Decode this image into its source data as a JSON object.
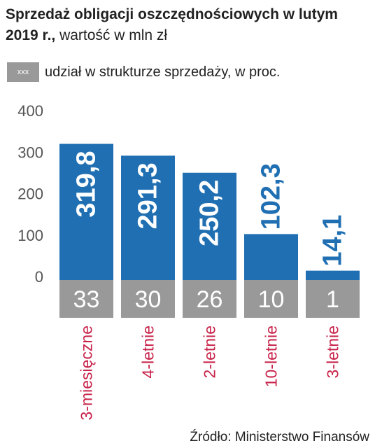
{
  "title": {
    "bold": "Sprzedaż obligacji oszczędnościowych w lutym 2019 r.,",
    "normal": " wartość w mln zł"
  },
  "legend": {
    "swatch_text": "xxx",
    "text": "udział w strukturze sprzedaży, w proc."
  },
  "source": "Źródło: Ministerstwo Finansów",
  "colors": {
    "bar": "#1f6fb2",
    "share_box": "#999999",
    "category": "#c8234a",
    "text": "#222222"
  },
  "chart_data": {
    "type": "bar",
    "categories": [
      "3-miesięczne",
      "4-letnie",
      "2-letnie",
      "10-letnie",
      "3-letnie"
    ],
    "values": [
      319.8,
      291.3,
      250.2,
      102.3,
      14.1
    ],
    "value_labels": [
      "319,8",
      "291,3",
      "250,2",
      "102,3",
      "14,1"
    ],
    "shares": [
      "33",
      "30",
      "26",
      "10",
      "1"
    ],
    "y_ticks": [
      "0",
      "100",
      "200",
      "300",
      "400"
    ],
    "ylim": [
      0,
      400
    ],
    "grid": false
  }
}
